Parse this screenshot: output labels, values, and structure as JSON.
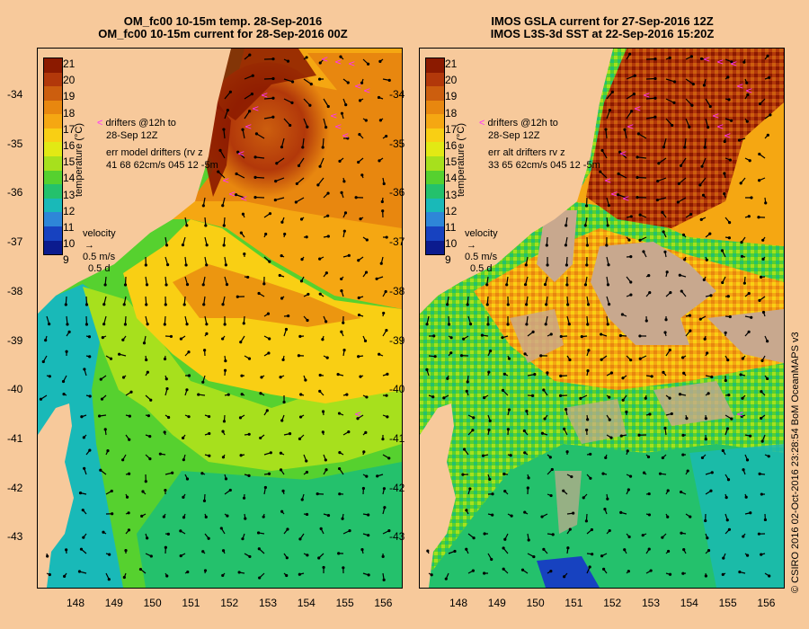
{
  "left": {
    "title_line1": "OM_fc00 10-15m temp. 28-Sep-2016",
    "title_line2": "OM_fc00 10-15m current for 28-Sep-2016 00Z",
    "legend_drifters": "drifters @12h to",
    "legend_date": "28-Sep 12Z",
    "legend_err_line1": "err model drifters (rv z",
    "legend_err_line2": "41 68 62cm/s 045 12 -5m"
  },
  "right": {
    "title_line1": "IMOS GSLA current for 27-Sep-2016 12Z",
    "title_line2": "IMOS L3S-3d SST at 22-Sep-2016 15:20Z",
    "legend_drifters": "drifters @12h to",
    "legend_date": "28-Sep 12Z",
    "legend_err_line1": "err alt drifters rv z",
    "legend_err_line2": "33 65 62cm/s 045 12 -5m"
  },
  "velocity": {
    "label": "velocity",
    "speed": "0.5 m/s",
    "duration": "0.5 d"
  },
  "colorbar": {
    "label": "temperature (°C)",
    "ticks": [
      "21",
      "20",
      "19",
      "18",
      "17",
      "16",
      "15",
      "14",
      "13",
      "12",
      "11",
      "10",
      "9"
    ],
    "colors": [
      "#8b1a00",
      "#b2380a",
      "#cc5e0e",
      "#e8870f",
      "#f5a712",
      "#f9cf14",
      "#e2e914",
      "#a7e01d",
      "#56d12f",
      "#24c16c",
      "#19b9b8",
      "#2e86d8",
      "#1742c0",
      "#0b1b8e"
    ]
  },
  "lat_ticks": [
    "-34",
    "-35",
    "-36",
    "-37",
    "-38",
    "-39",
    "-40",
    "-41",
    "-42",
    "-43"
  ],
  "lon_ticks": [
    "148",
    "149",
    "150",
    "151",
    "152",
    "153",
    "154",
    "155",
    "156"
  ],
  "colors": {
    "land": "#f7c99b",
    "drifter": "#ff30ff",
    "cloud": "#c8a88e"
  },
  "credit": "© CSIRO 2016   02-Oct-2016 23:28:54 BoM OceanMAPS v3"
}
